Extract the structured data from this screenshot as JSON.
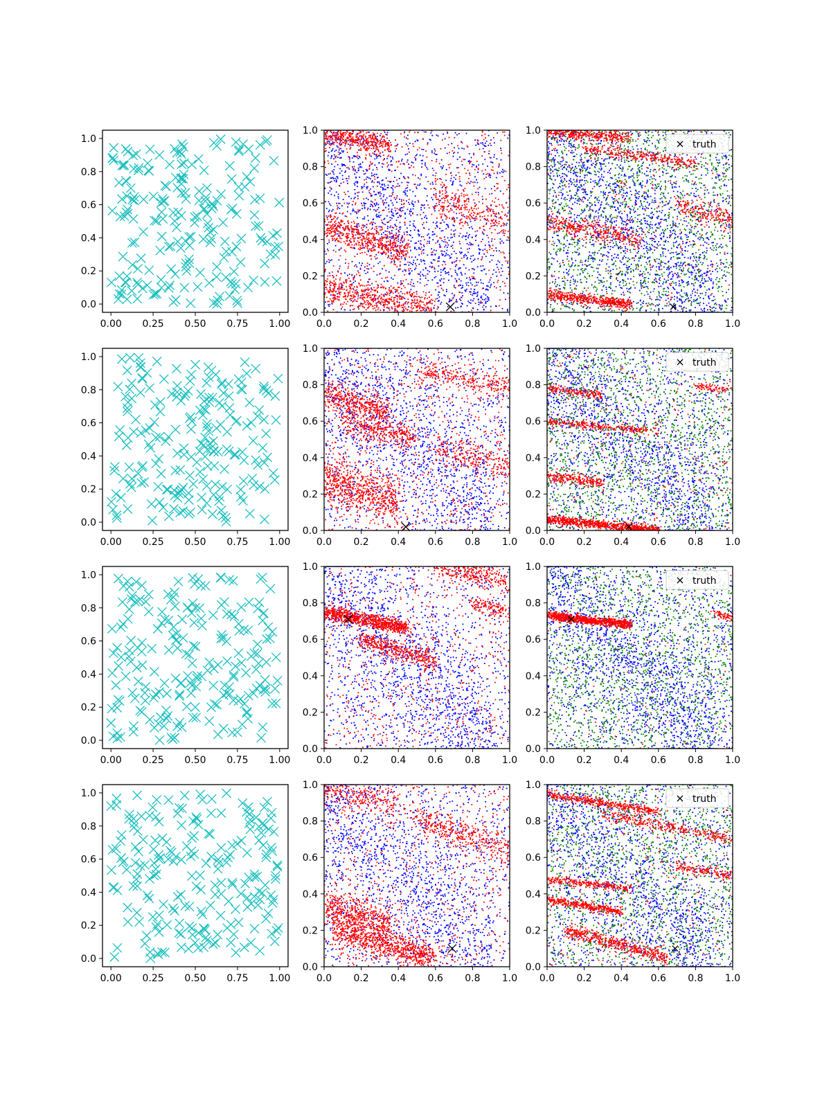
{
  "figure": {
    "rows": 4,
    "cols": 3,
    "colors": {
      "cross": "#1bbfbf",
      "blue": "#0000ff",
      "red": "#ff0000",
      "green": "#008000",
      "truth": "#000000",
      "axis": "#000000",
      "background": "#ffffff"
    }
  },
  "legend_label": "truth",
  "chart_data": [
    {
      "type": "scatter",
      "row": 1,
      "col": 1,
      "marker": "x",
      "xlim": [
        -0.05,
        1.05
      ],
      "ylim": [
        -0.05,
        1.05
      ],
      "xticks": [
        "0.00",
        "0.25",
        "0.50",
        "0.75",
        "1.00"
      ],
      "yticks": [
        "0.0",
        "0.2",
        "0.4",
        "0.6",
        "0.8",
        "1.0"
      ],
      "seed": 11,
      "n": 220
    },
    {
      "type": "scatter",
      "row": 1,
      "col": 2,
      "xlim": [
        0,
        1
      ],
      "ylim": [
        0,
        1
      ],
      "xticks": [
        "0.0",
        "0.2",
        "0.4",
        "0.6",
        "0.8",
        "1.0"
      ],
      "yticks": [
        "0.0",
        "0.2",
        "0.4",
        "0.6",
        "0.8",
        "1.0"
      ],
      "truth": [
        0.68,
        0.03
      ],
      "legend": false,
      "seed": 12,
      "blue_n": 1700,
      "red_uniform_n": 600,
      "red_bands": [
        {
          "x0": 0,
          "y0": 0.98,
          "x1": 0.35,
          "y1": 0.92,
          "spread": 0.03,
          "n": 420
        },
        {
          "x0": 0,
          "y0": 0.48,
          "x1": 0.45,
          "y1": 0.33,
          "spread": 0.04,
          "n": 500
        },
        {
          "x0": 0,
          "y0": 0.13,
          "x1": 0.6,
          "y1": 0.0,
          "spread": 0.05,
          "n": 650
        },
        {
          "x0": 0.6,
          "y0": 0.62,
          "x1": 1.0,
          "y1": 0.48,
          "spread": 0.05,
          "n": 260
        }
      ]
    },
    {
      "type": "scatter",
      "row": 1,
      "col": 3,
      "xlim": [
        0,
        1
      ],
      "ylim": [
        0,
        1
      ],
      "xticks": [
        "0.0",
        "0.2",
        "0.4",
        "0.6",
        "0.8",
        "1.0"
      ],
      "yticks": [
        "0.0",
        "0.2",
        "0.4",
        "0.6",
        "0.8",
        "1.0"
      ],
      "truth": [
        0.68,
        0.03
      ],
      "legend": true,
      "seed": 13,
      "blue_n": 2000,
      "green_n": 1500,
      "red_uniform_n": 250,
      "red_bands": [
        {
          "x0": 0,
          "y0": 0.99,
          "x1": 0.45,
          "y1": 0.96,
          "spread": 0.015,
          "n": 350
        },
        {
          "x0": 0.2,
          "y0": 0.9,
          "x1": 0.8,
          "y1": 0.82,
          "spread": 0.015,
          "n": 300
        },
        {
          "x0": 0,
          "y0": 0.5,
          "x1": 0.5,
          "y1": 0.4,
          "spread": 0.03,
          "n": 350
        },
        {
          "x0": 0,
          "y0": 0.1,
          "x1": 0.45,
          "y1": 0.04,
          "spread": 0.015,
          "n": 500
        },
        {
          "x0": 0.7,
          "y0": 0.6,
          "x1": 1.0,
          "y1": 0.5,
          "spread": 0.03,
          "n": 200
        }
      ]
    },
    {
      "type": "scatter",
      "row": 2,
      "col": 1,
      "marker": "x",
      "xlim": [
        -0.05,
        1.05
      ],
      "ylim": [
        -0.05,
        1.05
      ],
      "xticks": [
        "0.00",
        "0.25",
        "0.50",
        "0.75",
        "1.00"
      ],
      "yticks": [
        "0.0",
        "0.2",
        "0.4",
        "0.6",
        "0.8",
        "1.0"
      ],
      "seed": 21,
      "n": 220
    },
    {
      "type": "scatter",
      "row": 2,
      "col": 2,
      "xlim": [
        0,
        1
      ],
      "ylim": [
        0,
        1
      ],
      "xticks": [
        "0.0",
        "0.2",
        "0.4",
        "0.6",
        "0.8",
        "1.0"
      ],
      "yticks": [
        "0.0",
        "0.2",
        "0.4",
        "0.6",
        "0.8",
        "1.0"
      ],
      "truth": [
        0.44,
        0.02
      ],
      "legend": false,
      "seed": 22,
      "blue_n": 1800,
      "red_uniform_n": 650,
      "red_bands": [
        {
          "x0": 0,
          "y0": 0.75,
          "x1": 0.35,
          "y1": 0.65,
          "spread": 0.04,
          "n": 420
        },
        {
          "x0": 0.1,
          "y0": 0.6,
          "x1": 0.5,
          "y1": 0.5,
          "spread": 0.035,
          "n": 330
        },
        {
          "x0": 0,
          "y0": 0.28,
          "x1": 0.4,
          "y1": 0.15,
          "spread": 0.06,
          "n": 650
        },
        {
          "x0": 0.5,
          "y0": 0.88,
          "x1": 1.0,
          "y1": 0.78,
          "spread": 0.03,
          "n": 260
        },
        {
          "x0": 0.6,
          "y0": 0.45,
          "x1": 1.0,
          "y1": 0.35,
          "spread": 0.04,
          "n": 220
        }
      ]
    },
    {
      "type": "scatter",
      "row": 2,
      "col": 3,
      "xlim": [
        0,
        1
      ],
      "ylim": [
        0,
        1
      ],
      "xticks": [
        "0.0",
        "0.2",
        "0.4",
        "0.6",
        "0.8",
        "1.0"
      ],
      "yticks": [
        "0.0",
        "0.2",
        "0.4",
        "0.6",
        "0.8",
        "1.0"
      ],
      "truth": [
        0.44,
        0.02
      ],
      "legend": true,
      "seed": 23,
      "blue_n": 1900,
      "green_n": 1600,
      "red_uniform_n": 250,
      "red_bands": [
        {
          "x0": 0,
          "y0": 0.06,
          "x1": 0.6,
          "y1": 0.0,
          "spread": 0.012,
          "n": 800
        },
        {
          "x0": 0,
          "y0": 0.3,
          "x1": 0.3,
          "y1": 0.26,
          "spread": 0.015,
          "n": 220
        },
        {
          "x0": 0,
          "y0": 0.6,
          "x1": 0.6,
          "y1": 0.54,
          "spread": 0.012,
          "n": 250
        },
        {
          "x0": 0,
          "y0": 0.78,
          "x1": 0.3,
          "y1": 0.74,
          "spread": 0.012,
          "n": 150
        },
        {
          "x0": 0.8,
          "y0": 0.79,
          "x1": 1.0,
          "y1": 0.77,
          "spread": 0.01,
          "n": 80
        }
      ]
    },
    {
      "type": "scatter",
      "row": 3,
      "col": 1,
      "marker": "x",
      "xlim": [
        -0.05,
        1.05
      ],
      "ylim": [
        -0.05,
        1.05
      ],
      "xticks": [
        "0.00",
        "0.25",
        "0.50",
        "0.75",
        "1.00"
      ],
      "yticks": [
        "0.0",
        "0.2",
        "0.4",
        "0.6",
        "0.8",
        "1.0"
      ],
      "seed": 31,
      "n": 220
    },
    {
      "type": "scatter",
      "row": 3,
      "col": 2,
      "xlim": [
        0,
        1
      ],
      "ylim": [
        0,
        1
      ],
      "xticks": [
        "0.0",
        "0.2",
        "0.4",
        "0.6",
        "0.8",
        "1.0"
      ],
      "yticks": [
        "0.0",
        "0.2",
        "0.4",
        "0.6",
        "0.8",
        "1.0"
      ],
      "truth": [
        0.13,
        0.71
      ],
      "legend": false,
      "seed": 32,
      "blue_n": 1900,
      "red_uniform_n": 600,
      "red_bands": [
        {
          "x0": 0,
          "y0": 0.75,
          "x1": 0.45,
          "y1": 0.66,
          "spread": 0.02,
          "n": 800
        },
        {
          "x0": 0.2,
          "y0": 0.6,
          "x1": 0.6,
          "y1": 0.48,
          "spread": 0.03,
          "n": 400
        },
        {
          "x0": 0.6,
          "y0": 1.0,
          "x1": 1.0,
          "y1": 0.92,
          "spread": 0.03,
          "n": 280
        },
        {
          "x0": 0.8,
          "y0": 0.8,
          "x1": 1.0,
          "y1": 0.74,
          "spread": 0.02,
          "n": 120
        }
      ]
    },
    {
      "type": "scatter",
      "row": 3,
      "col": 3,
      "xlim": [
        0,
        1
      ],
      "ylim": [
        0,
        1
      ],
      "xticks": [
        "0.0",
        "0.2",
        "0.4",
        "0.6",
        "0.8",
        "1.0"
      ],
      "yticks": [
        "0.0",
        "0.2",
        "0.4",
        "0.6",
        "0.8",
        "1.0"
      ],
      "truth": [
        0.13,
        0.71
      ],
      "legend": true,
      "seed": 33,
      "blue_n": 2100,
      "green_n": 1500,
      "red_uniform_n": 80,
      "red_bands": [
        {
          "x0": 0,
          "y0": 0.73,
          "x1": 0.45,
          "y1": 0.68,
          "spread": 0.012,
          "n": 900
        },
        {
          "x0": 0.9,
          "y0": 0.74,
          "x1": 1.0,
          "y1": 0.72,
          "spread": 0.01,
          "n": 60
        }
      ]
    },
    {
      "type": "scatter",
      "row": 4,
      "col": 1,
      "marker": "x",
      "xlim": [
        -0.05,
        1.05
      ],
      "ylim": [
        -0.05,
        1.05
      ],
      "xticks": [
        "0.00",
        "0.25",
        "0.50",
        "0.75",
        "1.00"
      ],
      "yticks": [
        "0.0",
        "0.2",
        "0.4",
        "0.6",
        "0.8",
        "1.0"
      ],
      "seed": 41,
      "n": 220
    },
    {
      "type": "scatter",
      "row": 4,
      "col": 2,
      "xlim": [
        0,
        1
      ],
      "ylim": [
        0,
        1
      ],
      "xticks": [
        "0.0",
        "0.2",
        "0.4",
        "0.6",
        "0.8",
        "1.0"
      ],
      "yticks": [
        "0.0",
        "0.2",
        "0.4",
        "0.6",
        "0.8",
        "1.0"
      ],
      "truth": [
        0.69,
        0.1
      ],
      "legend": false,
      "seed": 42,
      "blue_n": 1800,
      "red_uniform_n": 650,
      "red_bands": [
        {
          "x0": 0,
          "y0": 0.33,
          "x1": 0.35,
          "y1": 0.24,
          "spread": 0.05,
          "n": 500
        },
        {
          "x0": 0.05,
          "y0": 0.2,
          "x1": 0.6,
          "y1": 0.05,
          "spread": 0.04,
          "n": 800
        },
        {
          "x0": 0,
          "y0": 0.97,
          "x1": 0.4,
          "y1": 0.9,
          "spread": 0.04,
          "n": 250
        },
        {
          "x0": 0.5,
          "y0": 0.8,
          "x1": 1.0,
          "y1": 0.65,
          "spread": 0.04,
          "n": 350
        }
      ]
    },
    {
      "type": "scatter",
      "row": 4,
      "col": 3,
      "xlim": [
        0,
        1
      ],
      "ylim": [
        0,
        1
      ],
      "xticks": [
        "0.0",
        "0.2",
        "0.4",
        "0.6",
        "0.8",
        "1.0"
      ],
      "yticks": [
        "0.0",
        "0.2",
        "0.4",
        "0.6",
        "0.8",
        "1.0"
      ],
      "truth": [
        0.69,
        0.1
      ],
      "legend": true,
      "seed": 43,
      "blue_n": 1900,
      "green_n": 1500,
      "red_uniform_n": 200,
      "red_bands": [
        {
          "x0": 0,
          "y0": 0.95,
          "x1": 0.6,
          "y1": 0.85,
          "spread": 0.012,
          "n": 400
        },
        {
          "x0": 0.3,
          "y0": 0.84,
          "x1": 1.0,
          "y1": 0.7,
          "spread": 0.015,
          "n": 300
        },
        {
          "x0": 0,
          "y0": 0.48,
          "x1": 0.45,
          "y1": 0.43,
          "spread": 0.012,
          "n": 250
        },
        {
          "x0": 0,
          "y0": 0.37,
          "x1": 0.4,
          "y1": 0.3,
          "spread": 0.012,
          "n": 350
        },
        {
          "x0": 0.1,
          "y0": 0.2,
          "x1": 0.65,
          "y1": 0.05,
          "spread": 0.02,
          "n": 500
        },
        {
          "x0": 0.7,
          "y0": 0.55,
          "x1": 1.0,
          "y1": 0.5,
          "spread": 0.015,
          "n": 150
        }
      ]
    }
  ]
}
